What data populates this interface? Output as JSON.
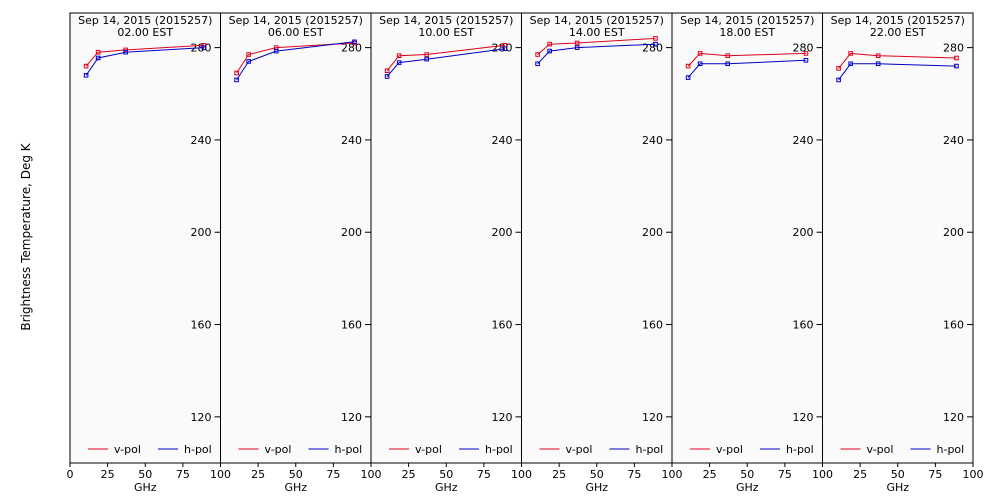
{
  "chart_data": {
    "type": "line",
    "ylabel": "Brightness Temperature, Deg K",
    "xlabel": "GHz",
    "ylim": [
      100,
      295
    ],
    "xlim": [
      0,
      100
    ],
    "xticks": [
      0,
      25,
      50,
      75,
      100
    ],
    "yticks": [
      120,
      160,
      200,
      240,
      280
    ],
    "x": [
      10.7,
      18.7,
      37,
      89
    ],
    "series_colors": {
      "v-pol": "#e0001a",
      "h-pol": "#0000c8"
    },
    "legend": [
      "v-pol",
      "h-pol"
    ],
    "legend_position": "bottom",
    "panels": [
      {
        "title": "Sep 14, 2015 (2015257)",
        "time": "02.00  EST",
        "series": [
          {
            "name": "v-pol",
            "values": [
              272,
              278,
              279,
              281
            ]
          },
          {
            "name": "h-pol",
            "values": [
              268,
              275.5,
              278,
              280
            ]
          }
        ]
      },
      {
        "title": "Sep 14, 2015 (2015257)",
        "time": "06.00  EST",
        "series": [
          {
            "name": "v-pol",
            "values": [
              269,
              277,
              280,
              282
            ]
          },
          {
            "name": "h-pol",
            "values": [
              266,
              274,
              278.5,
              282.5
            ]
          }
        ]
      },
      {
        "title": "Sep 14, 2015 (2015257)",
        "time": "10.00  EST",
        "series": [
          {
            "name": "v-pol",
            "values": [
              270,
              276.5,
              277,
              281
            ]
          },
          {
            "name": "h-pol",
            "values": [
              267.5,
              273.5,
              275,
              279.5
            ]
          }
        ]
      },
      {
        "title": "Sep 14, 2015 (2015257)",
        "time": "14.00  EST",
        "series": [
          {
            "name": "v-pol",
            "values": [
              277,
              281.5,
              282,
              284
            ]
          },
          {
            "name": "h-pol",
            "values": [
              273,
              278.5,
              280,
              281.5
            ]
          }
        ]
      },
      {
        "title": "Sep 14, 2015 (2015257)",
        "time": "18.00  EST",
        "series": [
          {
            "name": "v-pol",
            "values": [
              272,
              277.5,
              276.5,
              277.5
            ]
          },
          {
            "name": "h-pol",
            "values": [
              267,
              273,
              273,
              274.5
            ]
          }
        ]
      },
      {
        "title": "Sep 14, 2015 (2015257)",
        "time": "22.00  EST",
        "series": [
          {
            "name": "v-pol",
            "values": [
              271,
              277.5,
              276.5,
              275.5
            ]
          },
          {
            "name": "h-pol",
            "values": [
              266,
              273,
              273,
              272
            ]
          }
        ]
      }
    ]
  }
}
